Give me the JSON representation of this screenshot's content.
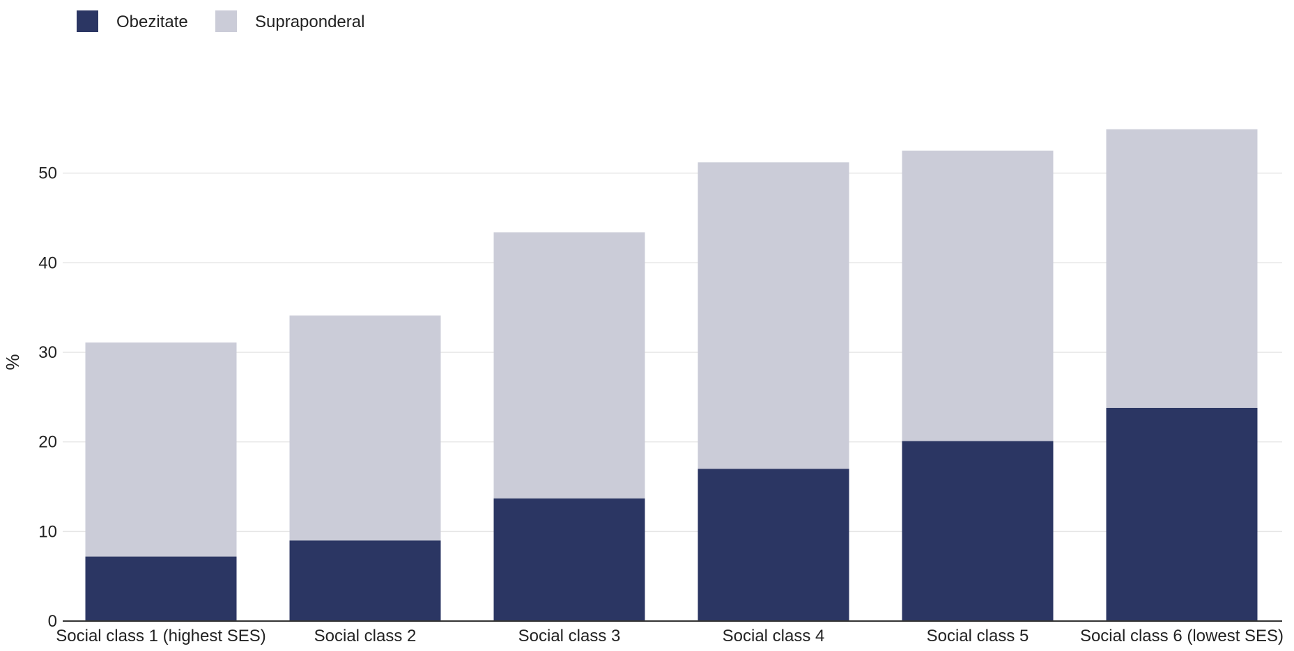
{
  "chart_data": {
    "type": "bar",
    "stacked": true,
    "categories": [
      "Social class 1 (highest SES)",
      "Social class 2",
      "Social class 3",
      "Social class 4",
      "Social class 5",
      "Social class 6 (lowest SES)"
    ],
    "series": [
      {
        "name": "Obezitate",
        "color": "#2b3663",
        "values": [
          7.2,
          9.0,
          13.7,
          17.0,
          20.1,
          23.8
        ]
      },
      {
        "name": "Supraponderal",
        "color": "#cbccd8",
        "values": [
          23.9,
          25.1,
          29.7,
          34.2,
          32.4,
          31.1
        ]
      }
    ],
    "ylabel": "%",
    "xlabel": "",
    "ylim": [
      0,
      60
    ],
    "yticks": [
      0,
      10,
      20,
      30,
      40,
      50
    ],
    "grid": true,
    "legend_position": "top-left"
  }
}
